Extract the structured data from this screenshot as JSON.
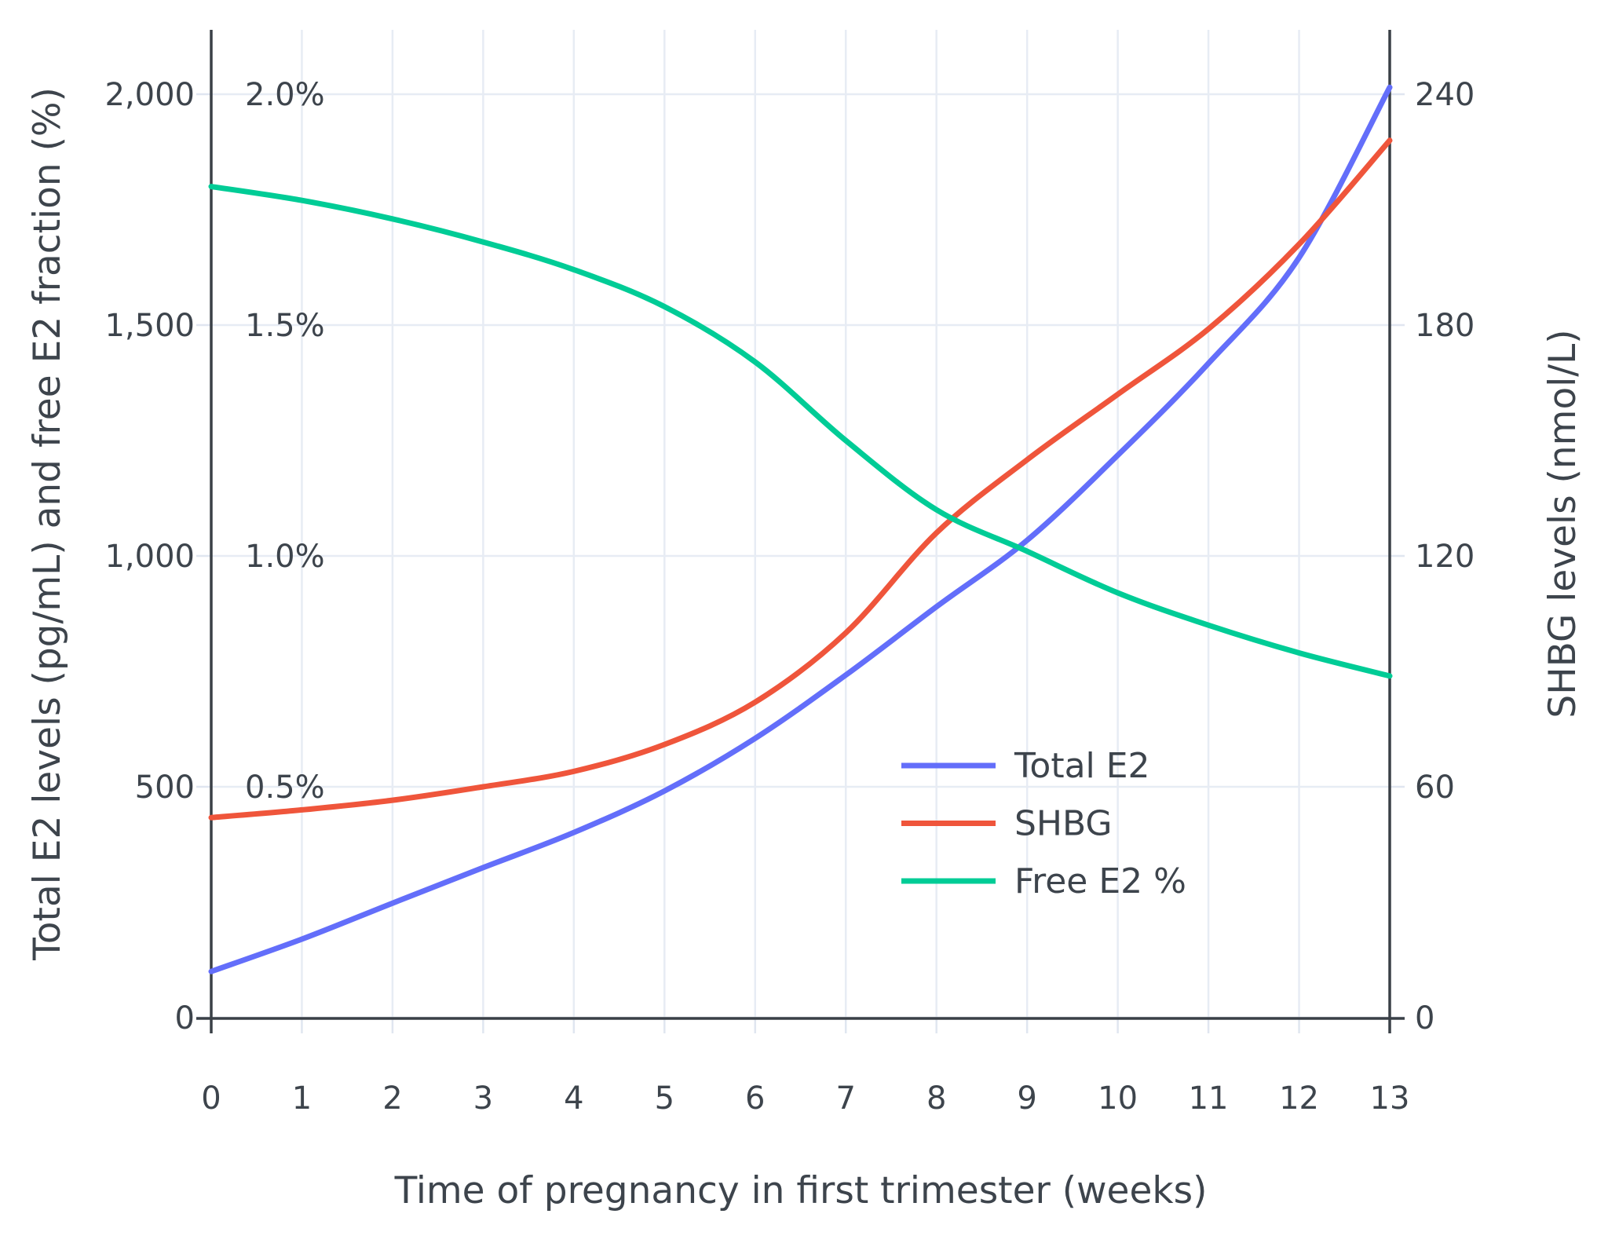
{
  "figure": {
    "x_axis_title": "Time of pregnancy in first trimester (weeks)",
    "y_left_title": "Total E2 levels (pg/mL) and free E2 fraction (%)",
    "y_right_title": "SHBG levels (nmol/L)",
    "x_tick_labels": [
      "0",
      "1",
      "2",
      "3",
      "4",
      "5",
      "6",
      "7",
      "8",
      "9",
      "10",
      "11",
      "12",
      "13"
    ],
    "y_left_tick_labels": [
      "0",
      "500",
      "1,000",
      "1,500",
      "2,000"
    ],
    "y_left_inner_percent_labels": [
      "0.5%",
      "1.0%",
      "1.5%",
      "2.0%"
    ],
    "y_right_tick_labels": [
      "0",
      "60",
      "120",
      "180",
      "240"
    ],
    "colors": {
      "total_e2": "#636efa",
      "shbg": "#ef553b",
      "free_e2": "#00cc96",
      "gridline": "#e7ecf4",
      "tick_mark": "#e0e6f0",
      "axis_line": "#3a4047",
      "text": "#3d444c",
      "background": "#ffffff"
    },
    "legend": [
      {
        "label": "Total E2",
        "color": "#636efa"
      },
      {
        "label": "SHBG",
        "color": "#ef553b"
      },
      {
        "label": "Free E2 %",
        "color": "#00cc96"
      }
    ]
  },
  "chart_data": {
    "type": "line",
    "title": "",
    "xlabel": "Time of pregnancy in first trimester (weeks)",
    "ylabel_left": "Total E2 levels (pg/mL) and free E2 fraction (%)",
    "ylabel_right": "SHBG levels (nmol/L)",
    "x": [
      0,
      1,
      2,
      3,
      4,
      5,
      6,
      7,
      8,
      9,
      10,
      11,
      12,
      13
    ],
    "x_range": [
      0,
      13
    ],
    "y_left_range": [
      0,
      2140
    ],
    "y_right_range": [
      0,
      257
    ],
    "y_left_gridline_values": [
      0,
      500,
      1000,
      1500,
      2000
    ],
    "y_right_gridline_values": [
      0,
      60,
      120,
      180,
      240
    ],
    "grid": true,
    "legend_position": "middle-right",
    "series": [
      {
        "name": "Total E2",
        "axis": "left",
        "units": "pg/mL",
        "color": "#636efa",
        "values": [
          100,
          170,
          248,
          325,
          401,
          491,
          605,
          742,
          890,
          1034,
          1218,
          1417,
          1646,
          2015
        ]
      },
      {
        "name": "SHBG",
        "axis": "right",
        "units": "nmol/L",
        "color": "#ef553b",
        "values": [
          52,
          54,
          56.5,
          60,
          64,
          71,
          82,
          100,
          126,
          145,
          162,
          179,
          201,
          228
        ]
      },
      {
        "name": "Free E2 %",
        "axis": "left-percent",
        "units": "%",
        "color": "#00cc96",
        "values": [
          1.8,
          1.77,
          1.73,
          1.68,
          1.62,
          1.54,
          1.42,
          1.25,
          1.1,
          1.01,
          0.92,
          0.85,
          0.79,
          0.74
        ]
      }
    ]
  }
}
